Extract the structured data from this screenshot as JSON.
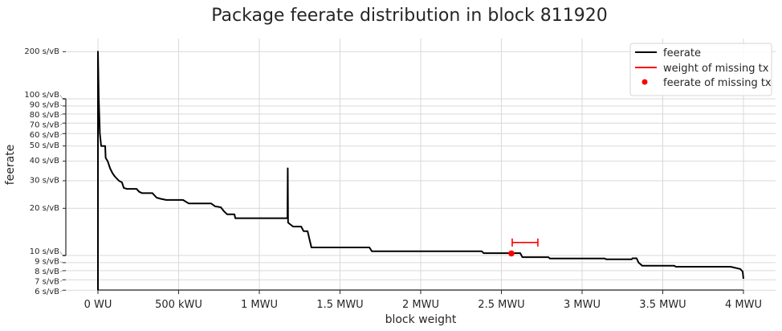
{
  "chart_data": {
    "type": "line",
    "title": "Package feerate distribution in block 811920",
    "xlabel": "block weight",
    "ylabel": "feerate",
    "x_unit": "MWU",
    "y_scale": "log",
    "xlim": [
      -0.2,
      4.2
    ],
    "ylim": [
      6,
      240
    ],
    "grid": true,
    "legend_placement": "top-right",
    "x_ticks": [
      {
        "value": 0,
        "label": "0 WU"
      },
      {
        "value": 0.5,
        "label": "500 kWU"
      },
      {
        "value": 1,
        "label": "1 MWU"
      },
      {
        "value": 1.5,
        "label": "1.5 MWU"
      },
      {
        "value": 2,
        "label": "2 MWU"
      },
      {
        "value": 2.5,
        "label": "2.5 MWU"
      },
      {
        "value": 3,
        "label": "3 MWU"
      },
      {
        "value": 3.5,
        "label": "3.5 MWU"
      },
      {
        "value": 4,
        "label": "4 MWU"
      }
    ],
    "y_ticks": [
      {
        "value": 6,
        "label": "6 s/vB"
      },
      {
        "value": 7,
        "label": "7 s/vB"
      },
      {
        "value": 8,
        "label": "8 s/vB"
      },
      {
        "value": 9,
        "label": "9 s/vB"
      },
      {
        "value": 10,
        "label": "10 s/vB"
      },
      {
        "value": 20,
        "label": "20 s/vB"
      },
      {
        "value": 30,
        "label": "30 s/vB"
      },
      {
        "value": 40,
        "label": "40 s/vB"
      },
      {
        "value": 50,
        "label": "50 s/vB"
      },
      {
        "value": 60,
        "label": "60 s/vB"
      },
      {
        "value": 70,
        "label": "70 s/vB"
      },
      {
        "value": 80,
        "label": "80 s/vB"
      },
      {
        "value": 90,
        "label": "90 s/vB"
      },
      {
        "value": 100,
        "label": "100 s/vB"
      },
      {
        "value": 200,
        "label": "200 s/vB"
      }
    ],
    "series": [
      {
        "name": "feerate",
        "color": "#000000",
        "points": [
          [
            0,
            6
          ],
          [
            0,
            200
          ],
          [
            0.005,
            100
          ],
          [
            0.012,
            60
          ],
          [
            0.02,
            50
          ],
          [
            0.045,
            50
          ],
          [
            0.048,
            42
          ],
          [
            0.06,
            40
          ],
          [
            0.075,
            36
          ],
          [
            0.09,
            33.5
          ],
          [
            0.104,
            32
          ],
          [
            0.13,
            30
          ],
          [
            0.149,
            29.3
          ],
          [
            0.16,
            27
          ],
          [
            0.179,
            26.6
          ],
          [
            0.239,
            26.6
          ],
          [
            0.255,
            25.5
          ],
          [
            0.274,
            25
          ],
          [
            0.338,
            25
          ],
          [
            0.363,
            23.4
          ],
          [
            0.39,
            23
          ],
          [
            0.423,
            22.6
          ],
          [
            0.527,
            22.6
          ],
          [
            0.562,
            21.5
          ],
          [
            0.701,
            21.5
          ],
          [
            0.726,
            20.6
          ],
          [
            0.761,
            20.3
          ],
          [
            0.78,
            19.2
          ],
          [
            0.801,
            18.3
          ],
          [
            0.846,
            18.3
          ],
          [
            0.851,
            17.3
          ],
          [
            1.174,
            17.3
          ],
          [
            1.176,
            36
          ],
          [
            1.178,
            16.2
          ],
          [
            1.209,
            15.3
          ],
          [
            1.259,
            15.3
          ],
          [
            1.274,
            14.3
          ],
          [
            1.299,
            14.3
          ],
          [
            1.31,
            12.8
          ],
          [
            1.323,
            11.25
          ],
          [
            1.682,
            11.25
          ],
          [
            1.697,
            10.65
          ],
          [
            2.378,
            10.65
          ],
          [
            2.39,
            10.35
          ],
          [
            2.617,
            10.35
          ],
          [
            2.63,
            9.76
          ],
          [
            2.791,
            9.76
          ],
          [
            2.8,
            9.57
          ],
          [
            3.139,
            9.57
          ],
          [
            3.15,
            9.46
          ],
          [
            3.308,
            9.46
          ],
          [
            3.312,
            9.6
          ],
          [
            3.338,
            9.6
          ],
          [
            3.35,
            9.0
          ],
          [
            3.373,
            8.6
          ],
          [
            3.572,
            8.6
          ],
          [
            3.58,
            8.48
          ],
          [
            3.92,
            8.48
          ],
          [
            3.98,
            8.2
          ],
          [
            3.995,
            7.9
          ],
          [
            4.0,
            7.1
          ]
        ]
      },
      {
        "name": "weight of missing tx",
        "color": "#ff0000",
        "x_range": [
          2.567,
          2.726
        ],
        "y": 12.1
      },
      {
        "name": "feerate of missing tx",
        "color": "#ff0000",
        "x": 2.562,
        "y": 10.3
      }
    ]
  }
}
